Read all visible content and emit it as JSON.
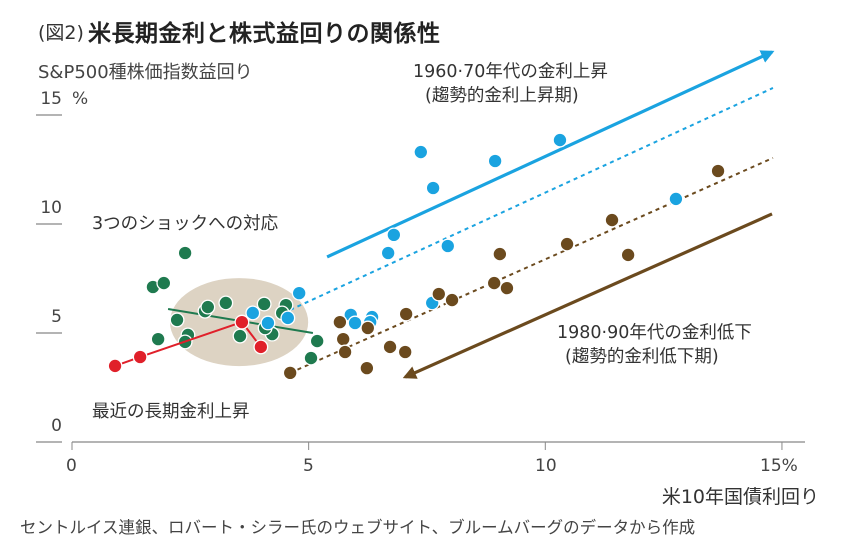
{
  "title": {
    "prefix": "(図2)",
    "main": "米長期金利と株式益回りの関係性"
  },
  "colors": {
    "blue": "#1aa3e0",
    "green": "#1f7a4f",
    "red": "#e0202a",
    "brown": "#6b4a1e",
    "ellipse": "#ddd3c3",
    "axis": "#888888"
  },
  "chart_data": {
    "type": "scatter",
    "title": "米長期金利と株式益回りの関係性",
    "xlabel": "米10年国債利回り",
    "ylabel": "S&P500種株価指数益回り",
    "xlim": [
      0,
      16
    ],
    "ylim": [
      0,
      15
    ],
    "x_ticks": [
      {
        "value": 0,
        "label": "0"
      },
      {
        "value": 5,
        "label": "5"
      },
      {
        "value": 10,
        "label": "10"
      },
      {
        "value": 15,
        "label": "15%"
      }
    ],
    "y_ticks": [
      {
        "value": 0,
        "label": "0"
      },
      {
        "value": 5,
        "label": "5"
      },
      {
        "value": 10,
        "label": "10"
      },
      {
        "value": 15,
        "label": "15"
      }
    ],
    "y_unit": "%",
    "grid": false,
    "series": [
      {
        "name": "1960·70年代の金利上昇",
        "color_key": "blue",
        "points": [
          [
            4.8,
            6.83
          ],
          [
            3.82,
            5.92
          ],
          [
            4.14,
            5.46
          ],
          [
            4.56,
            5.69
          ],
          [
            5.89,
            5.83
          ],
          [
            5.98,
            5.46
          ],
          [
            6.34,
            5.73
          ],
          [
            6.3,
            5.5
          ],
          [
            7.61,
            6.38
          ],
          [
            7.37,
            13.3
          ],
          [
            8.94,
            12.89
          ],
          [
            10.31,
            13.85
          ],
          [
            7.63,
            11.65
          ],
          [
            6.8,
            9.5
          ],
          [
            6.68,
            8.67
          ],
          [
            7.94,
            8.99
          ],
          [
            12.76,
            11.15
          ]
        ]
      },
      {
        "name": "1980·90年代の金利低下",
        "color_key": "brown",
        "points": [
          [
            4.61,
            3.17
          ],
          [
            5.66,
            5.5
          ],
          [
            5.73,
            4.72
          ],
          [
            5.77,
            4.13
          ],
          [
            6.25,
            5.23
          ],
          [
            6.23,
            3.39
          ],
          [
            6.72,
            4.36
          ],
          [
            7.04,
            4.13
          ],
          [
            7.06,
            5.87
          ],
          [
            7.75,
            6.79
          ],
          [
            8.03,
            6.51
          ],
          [
            8.92,
            7.29
          ],
          [
            9.19,
            7.06
          ],
          [
            9.04,
            8.62
          ],
          [
            10.46,
            9.08
          ],
          [
            11.41,
            10.18
          ],
          [
            11.75,
            8.58
          ],
          [
            13.65,
            12.43
          ]
        ]
      },
      {
        "name": "3つのショックへの対応",
        "color_key": "green",
        "points": [
          [
            1.71,
            7.11
          ],
          [
            1.94,
            7.29
          ],
          [
            2.22,
            5.6
          ],
          [
            1.82,
            4.72
          ],
          [
            2.45,
            4.91
          ],
          [
            2.39,
            4.59
          ],
          [
            2.81,
            6.0
          ],
          [
            2.87,
            6.19
          ],
          [
            3.25,
            6.38
          ],
          [
            3.55,
            4.86
          ],
          [
            4.06,
            6.33
          ],
          [
            4.52,
            6.28
          ],
          [
            4.44,
            5.92
          ],
          [
            4.23,
            4.95
          ],
          [
            4.08,
            5.23
          ],
          [
            5.18,
            4.63
          ],
          [
            5.05,
            3.85
          ],
          [
            2.39,
            8.67
          ]
        ]
      },
      {
        "name": "最近の長期金利上昇",
        "color_key": "red",
        "connected": true,
        "points": [
          [
            0.91,
            3.49
          ],
          [
            1.44,
            3.9
          ],
          [
            3.59,
            5.5
          ],
          [
            3.99,
            4.36
          ]
        ]
      }
    ],
    "trend_lines": [
      {
        "name": "blue-trend-arrow",
        "color_key": "blue",
        "style": "solid-arrow",
        "from": [
          5.39,
          8.49
        ],
        "to": [
          14.79,
          17.89
        ]
      },
      {
        "name": "blue-trend-dotted",
        "color_key": "blue",
        "style": "dotted",
        "from": [
          4.61,
          6.06
        ],
        "to": [
          14.81,
          16.24
        ]
      },
      {
        "name": "brown-trend-dotted",
        "color_key": "brown",
        "style": "dotted",
        "from": [
          4.61,
          3.17
        ],
        "to": [
          14.81,
          13.03
        ]
      },
      {
        "name": "brown-trend-arrow",
        "color_key": "brown",
        "style": "solid-arrow",
        "from": [
          14.79,
          10.46
        ],
        "to": [
          7.04,
          2.98
        ]
      },
      {
        "name": "green-trend-line",
        "color_key": "green",
        "style": "solid",
        "from": [
          2.03,
          6.1
        ],
        "to": [
          5.09,
          5.0
        ]
      }
    ],
    "highlight_ellipse": {
      "center": [
        3.53,
        5.5
      ],
      "radius_x": 1.46,
      "radius_y": 2.02
    },
    "annotations": {
      "rise_6070_line1": "1960·70年代の金利上昇",
      "rise_6070_line2": "(趨勢的金利上昇期)",
      "fall_8090_line1": "1980·90年代の金利低下",
      "fall_8090_line2": "(趨勢的金利低下期)",
      "shocks": "3つのショックへの対応",
      "recent": "最近の長期金利上昇"
    }
  },
  "source": "セントルイス連銀、ロバート・シラー氏のウェブサイト、ブルームバーグのデータから作成"
}
